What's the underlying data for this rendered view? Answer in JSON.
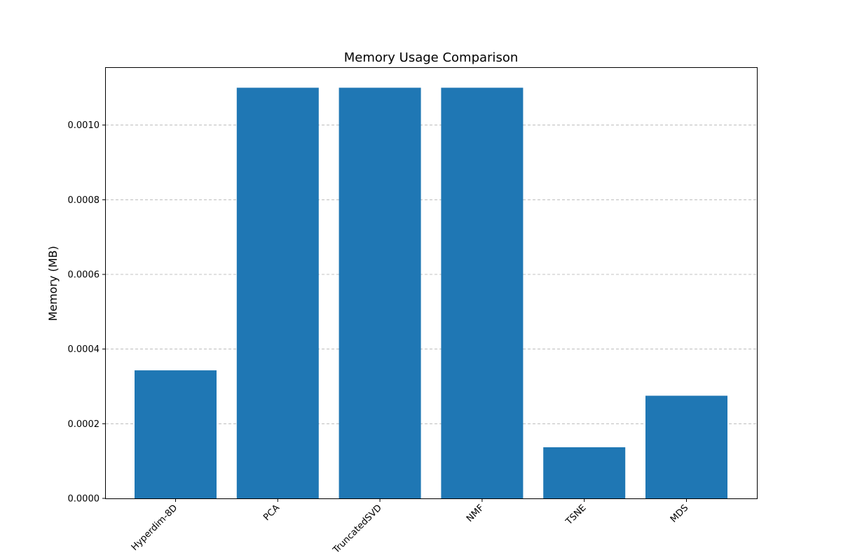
{
  "chart_data": {
    "type": "bar",
    "title": "Memory Usage Comparison",
    "xlabel": "",
    "ylabel": "Memory (MB)",
    "categories": [
      "Hyperdim-8D",
      "PCA",
      "TruncatedSVD",
      "NMF",
      "TSNE",
      "MDS"
    ],
    "values": [
      0.000343,
      0.0011,
      0.0011,
      0.0011,
      0.000137,
      0.000275
    ],
    "ylim": [
      0,
      0.001155
    ],
    "yticks": [
      "0.0000",
      "0.0002",
      "0.0004",
      "0.0006",
      "0.0008",
      "0.0010"
    ],
    "ytick_values": [
      0,
      0.0002,
      0.0004,
      0.0006,
      0.0008,
      0.001
    ],
    "grid": "y-dashed",
    "bar_color": "#1f77b4"
  }
}
